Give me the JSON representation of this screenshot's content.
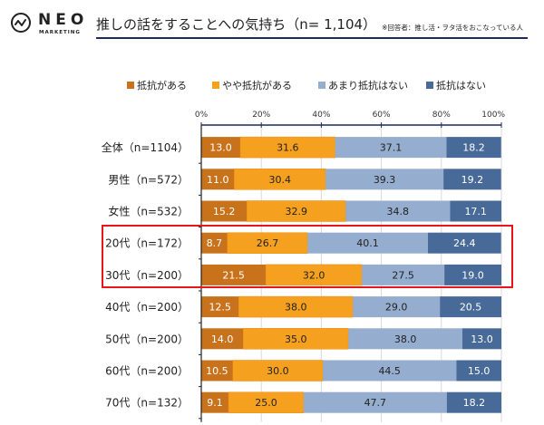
{
  "header": {
    "logo_main": "NEO",
    "logo_sub": "MARKETING",
    "title": "推しの話をすることへの気持ち",
    "title_n": "（n= 1,104）",
    "note": "※回答者：推し活・ヲタ活をおこなっている人"
  },
  "colors": {
    "series": [
      "#c8731c",
      "#f5a01f",
      "#95adce",
      "#476a98"
    ],
    "highlight": "#e8161a",
    "title_rule": "#1f2a5a"
  },
  "chart_data": {
    "type": "bar",
    "orientation": "horizontal-stacked-100",
    "title": "推しの話をすることへの気持ち（n= 1,104）",
    "categories": [
      "全体（n=1104）",
      "男性（n=572）",
      "女性（n=532）",
      "20代（n=172）",
      "30代（n=200）",
      "40代（n=200）",
      "50代（n=200）",
      "60代（n=200）",
      "70代（n=132）"
    ],
    "series": [
      {
        "name": "抵抗がある",
        "values": [
          13.0,
          11.0,
          15.2,
          8.7,
          21.5,
          12.5,
          14.0,
          10.5,
          9.1
        ]
      },
      {
        "name": "やや抵抗がある",
        "values": [
          31.6,
          30.4,
          32.9,
          26.7,
          32.0,
          38.0,
          35.0,
          30.0,
          25.0
        ]
      },
      {
        "name": "あまり抵抗はない",
        "values": [
          37.1,
          39.3,
          34.8,
          40.1,
          27.5,
          29.0,
          38.0,
          44.5,
          47.7
        ]
      },
      {
        "name": "抵抗はない",
        "values": [
          18.2,
          19.2,
          17.1,
          24.4,
          19.0,
          20.5,
          13.0,
          15.0,
          18.2
        ]
      }
    ],
    "xlim": [
      0,
      100
    ],
    "xticks": [
      "0%",
      "20%",
      "40%",
      "60%",
      "80%",
      "100%"
    ],
    "xlabel": "",
    "ylabel": "",
    "grid": true,
    "legend_position": "top",
    "highlighted_categories": [
      "20代（n=172）",
      "30代（n=200）"
    ]
  }
}
